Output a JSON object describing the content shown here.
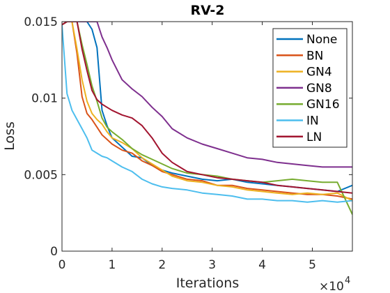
{
  "chart_data": {
    "type": "line",
    "title": "RV-2",
    "xlabel": "Iterations",
    "ylabel": "Loss",
    "x_multiplier_label": "×10",
    "x_multiplier_exp": "4",
    "xlim": [
      0,
      58000
    ],
    "ylim": [
      0,
      0.015
    ],
    "x_tick_values": [
      0,
      10000,
      20000,
      30000,
      40000,
      50000
    ],
    "x_tick_labels": [
      "0",
      "1",
      "2",
      "3",
      "4",
      "5"
    ],
    "y_tick_values": [
      0,
      0.005,
      0.01,
      0.015
    ],
    "y_tick_labels": [
      "0",
      "0.005",
      "0.01",
      "0.015"
    ],
    "grid": false,
    "legend_position": "top-right",
    "series": [
      {
        "name": "None",
        "color": "#0072BD",
        "x": [
          0,
          1000,
          2000,
          3000,
          4000,
          5000,
          6000,
          7000,
          8000,
          9000,
          10000,
          12000,
          14000,
          16000,
          18000,
          20000,
          22000,
          25000,
          28000,
          31000,
          34000,
          37000,
          40000,
          43000,
          46000,
          49000,
          52000,
          55000,
          58000
        ],
        "y": [
          0.0148,
          0.015,
          0.015,
          0.015,
          0.015,
          0.015,
          0.0145,
          0.0133,
          0.0092,
          0.0082,
          0.0074,
          0.0068,
          0.0062,
          0.0061,
          0.0056,
          0.0053,
          0.0051,
          0.0049,
          0.0047,
          0.0046,
          0.0047,
          0.0045,
          0.0044,
          0.0043,
          0.0042,
          0.0041,
          0.004,
          0.0039,
          0.0043
        ]
      },
      {
        "name": "BN",
        "color": "#D95319",
        "x": [
          0,
          1000,
          2000,
          3000,
          4000,
          5000,
          6000,
          7000,
          8000,
          9000,
          10000,
          12000,
          14000,
          16000,
          18000,
          20000,
          22000,
          25000,
          28000,
          31000,
          34000,
          37000,
          40000,
          43000,
          46000,
          49000,
          52000,
          55000,
          58000
        ],
        "y": [
          0.0148,
          0.015,
          0.015,
          0.0129,
          0.0101,
          0.009,
          0.0086,
          0.0081,
          0.0076,
          0.0073,
          0.007,
          0.0066,
          0.0064,
          0.0059,
          0.0056,
          0.0052,
          0.005,
          0.0047,
          0.0046,
          0.0043,
          0.0043,
          0.0041,
          0.004,
          0.0039,
          0.0038,
          0.0037,
          0.0037,
          0.0036,
          0.0034
        ]
      },
      {
        "name": "GN4",
        "color": "#EDB120",
        "x": [
          0,
          1000,
          2000,
          3000,
          4000,
          5000,
          6000,
          7000,
          8000,
          9000,
          10000,
          12000,
          14000,
          16000,
          18000,
          20000,
          22000,
          25000,
          28000,
          31000,
          34000,
          37000,
          40000,
          43000,
          46000,
          49000,
          52000,
          55000,
          58000
        ],
        "y": [
          0.0148,
          0.015,
          0.015,
          0.0132,
          0.0112,
          0.0098,
          0.009,
          0.0086,
          0.0083,
          0.0078,
          0.0074,
          0.0071,
          0.0067,
          0.0061,
          0.0057,
          0.0053,
          0.0049,
          0.0046,
          0.0045,
          0.0043,
          0.0042,
          0.004,
          0.0039,
          0.0038,
          0.0037,
          0.0038,
          0.0037,
          0.0038,
          0.0033
        ]
      },
      {
        "name": "GN8",
        "color": "#7E2F8E",
        "x": [
          0,
          1000,
          2000,
          3000,
          4000,
          5000,
          6000,
          7000,
          8000,
          9000,
          10000,
          12000,
          14000,
          16000,
          18000,
          20000,
          22000,
          25000,
          28000,
          31000,
          34000,
          37000,
          40000,
          43000,
          46000,
          49000,
          52000,
          55000,
          58000
        ],
        "y": [
          0.0148,
          0.015,
          0.015,
          0.015,
          0.015,
          0.015,
          0.015,
          0.015,
          0.014,
          0.0133,
          0.0125,
          0.0112,
          0.0106,
          0.0101,
          0.0094,
          0.0088,
          0.008,
          0.0074,
          0.007,
          0.0067,
          0.0064,
          0.0061,
          0.006,
          0.0058,
          0.0057,
          0.0056,
          0.0055,
          0.0055,
          0.0055
        ]
      },
      {
        "name": "GN16",
        "color": "#77AC30",
        "x": [
          0,
          1000,
          2000,
          3000,
          4000,
          5000,
          6000,
          7000,
          8000,
          9000,
          10000,
          12000,
          14000,
          16000,
          18000,
          20000,
          22000,
          25000,
          28000,
          31000,
          34000,
          37000,
          40000,
          43000,
          46000,
          49000,
          52000,
          55000,
          58000
        ],
        "y": [
          0.0148,
          0.015,
          0.015,
          0.015,
          0.0135,
          0.0122,
          0.0108,
          0.0098,
          0.0087,
          0.0081,
          0.0078,
          0.0073,
          0.0067,
          0.0063,
          0.006,
          0.0057,
          0.0054,
          0.0051,
          0.005,
          0.0049,
          0.0047,
          0.0046,
          0.0045,
          0.0046,
          0.0047,
          0.0046,
          0.0045,
          0.0045,
          0.0024
        ]
      },
      {
        "name": "IN",
        "color": "#4DBEEE",
        "x": [
          0,
          1000,
          2000,
          3000,
          4000,
          5000,
          6000,
          7000,
          8000,
          9000,
          10000,
          12000,
          14000,
          16000,
          18000,
          20000,
          22000,
          25000,
          28000,
          31000,
          34000,
          37000,
          40000,
          43000,
          46000,
          49000,
          52000,
          55000,
          58000
        ],
        "y": [
          0.0148,
          0.0103,
          0.0092,
          0.0086,
          0.008,
          0.0074,
          0.0066,
          0.0064,
          0.0062,
          0.0061,
          0.0059,
          0.0055,
          0.0052,
          0.0047,
          0.0044,
          0.0042,
          0.0041,
          0.004,
          0.0038,
          0.0037,
          0.0036,
          0.0034,
          0.0034,
          0.0033,
          0.0033,
          0.0032,
          0.0033,
          0.0032,
          0.0033
        ]
      },
      {
        "name": "LN",
        "color": "#A2142F",
        "x": [
          0,
          1000,
          2000,
          3000,
          4000,
          5000,
          6000,
          7000,
          8000,
          9000,
          10000,
          12000,
          14000,
          16000,
          18000,
          20000,
          22000,
          25000,
          28000,
          31000,
          34000,
          37000,
          40000,
          43000,
          46000,
          49000,
          52000,
          55000,
          58000
        ],
        "y": [
          0.0148,
          0.015,
          0.015,
          0.015,
          0.0132,
          0.0118,
          0.0105,
          0.0099,
          0.0096,
          0.0094,
          0.0092,
          0.0089,
          0.0087,
          0.0082,
          0.0074,
          0.0064,
          0.0058,
          0.0052,
          0.005,
          0.0048,
          0.0047,
          0.0046,
          0.0045,
          0.0043,
          0.0042,
          0.0041,
          0.004,
          0.0039,
          0.0038
        ]
      }
    ]
  }
}
